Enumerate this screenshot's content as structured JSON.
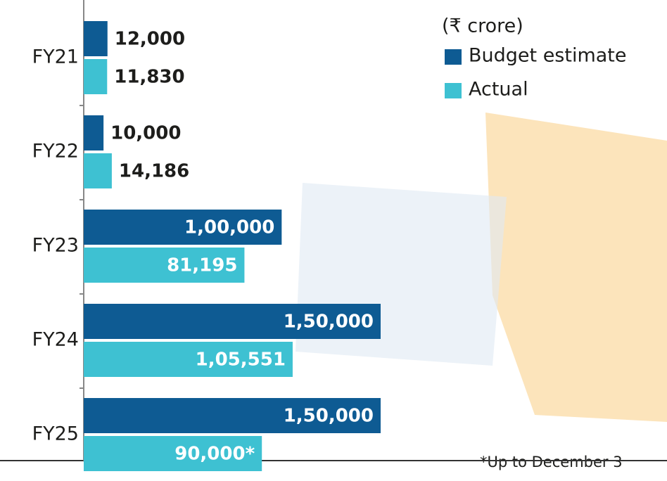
{
  "chart_data": {
    "type": "hbar",
    "unit_note": "(₹ crore)",
    "footnote": "*Up to December 3",
    "categories": [
      "FY21",
      "FY22",
      "FY23",
      "FY24",
      "FY25"
    ],
    "series": [
      {
        "name": "Budget estimate",
        "color": "#0e5b93",
        "values": [
          12000,
          10000,
          100000,
          150000,
          150000
        ],
        "value_labels": [
          "12,000",
          "10,000",
          "1,00,000",
          "1,50,000",
          "1,50,000"
        ]
      },
      {
        "name": "Actual",
        "color": "#3ec1d2",
        "values": [
          11830,
          14186,
          81195,
          105551,
          90000
        ],
        "value_labels": [
          "11,830",
          "14,186",
          "81,195",
          "1,05,551",
          "90,000*"
        ]
      }
    ]
  }
}
